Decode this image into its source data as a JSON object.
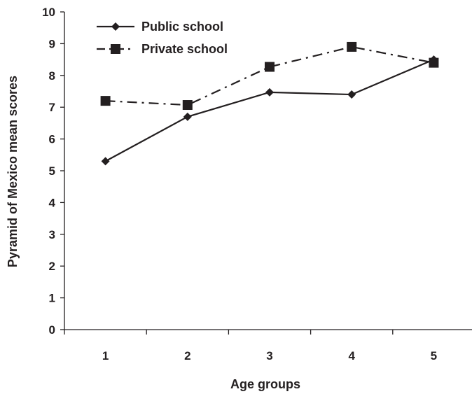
{
  "chart_data": {
    "type": "line",
    "title": "",
    "xlabel": "Age groups",
    "ylabel": "Pyramid of Mexico mean scores",
    "categories": [
      "1",
      "2",
      "3",
      "4",
      "5"
    ],
    "ylim": [
      0,
      10
    ],
    "yticks": [
      "0",
      "1",
      "2",
      "3",
      "4",
      "5",
      "6",
      "7",
      "8",
      "9",
      "10"
    ],
    "grid": false,
    "legend_position": "top-left",
    "series": [
      {
        "name": "Public school",
        "values": [
          5.3,
          6.7,
          7.47,
          7.4,
          8.5
        ],
        "marker": "diamond",
        "line_style": "solid",
        "color": "#231f20"
      },
      {
        "name": "Private school",
        "values": [
          7.2,
          7.07,
          8.27,
          8.9,
          8.4
        ],
        "marker": "square",
        "line_style": "dash-dot",
        "color": "#231f20"
      }
    ]
  }
}
